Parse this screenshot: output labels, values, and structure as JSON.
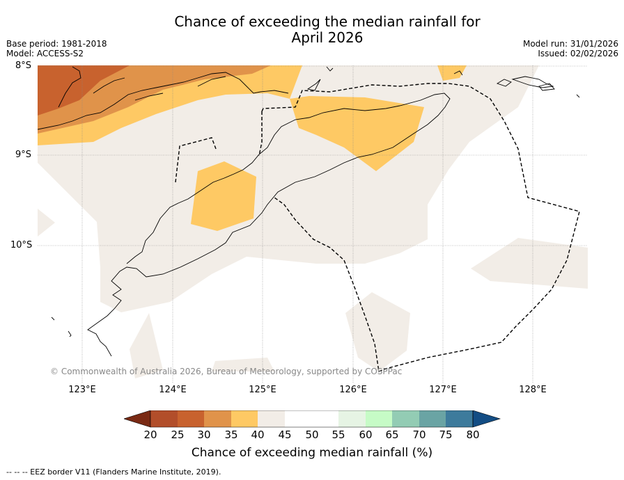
{
  "title": {
    "line1": "Chance of exceeding the median rainfall for",
    "line2": "April 2026"
  },
  "meta": {
    "base_period": "Base period: 1981-2018",
    "model": "Model: ACCESS-S2",
    "model_run": "Model run: 31/01/2026",
    "issued": "Issued: 02/02/2026"
  },
  "axes": {
    "lat_labels": [
      "8°S",
      "9°S",
      "10°S"
    ],
    "lon_labels": [
      "123°E",
      "124°E",
      "125°E",
      "126°E",
      "127°E",
      "128°E"
    ]
  },
  "copyright": "© Commonwealth of Australia 2026, Bureau of Meteorology, supported by COSPPac",
  "colorbar": {
    "ticks": [
      "20",
      "25",
      "30",
      "35",
      "40",
      "45",
      "50",
      "55",
      "60",
      "65",
      "70",
      "75",
      "80"
    ],
    "label": "Chance of exceeding median rainfall (%)"
  },
  "eez_note": "--  --  -- EEZ border V11 (Flanders Marine Institute, 2019).",
  "colors": {
    "below_20": "#7a2a14",
    "c20_25": "#b24e2a",
    "c25_30": "#c8622e",
    "c30_35": "#e0934a",
    "c35_40": "#fec964",
    "c40_45": "#f2ede7",
    "c45_50": "#ffffff",
    "c50_55": "#ffffff",
    "c55_60": "#e6f4e4",
    "c60_65": "#c6fbc6",
    "c65_70": "#93ccb4",
    "c70_75": "#6aa4a4",
    "c75_80": "#3d7b9c",
    "above_80": "#134d84"
  }
}
